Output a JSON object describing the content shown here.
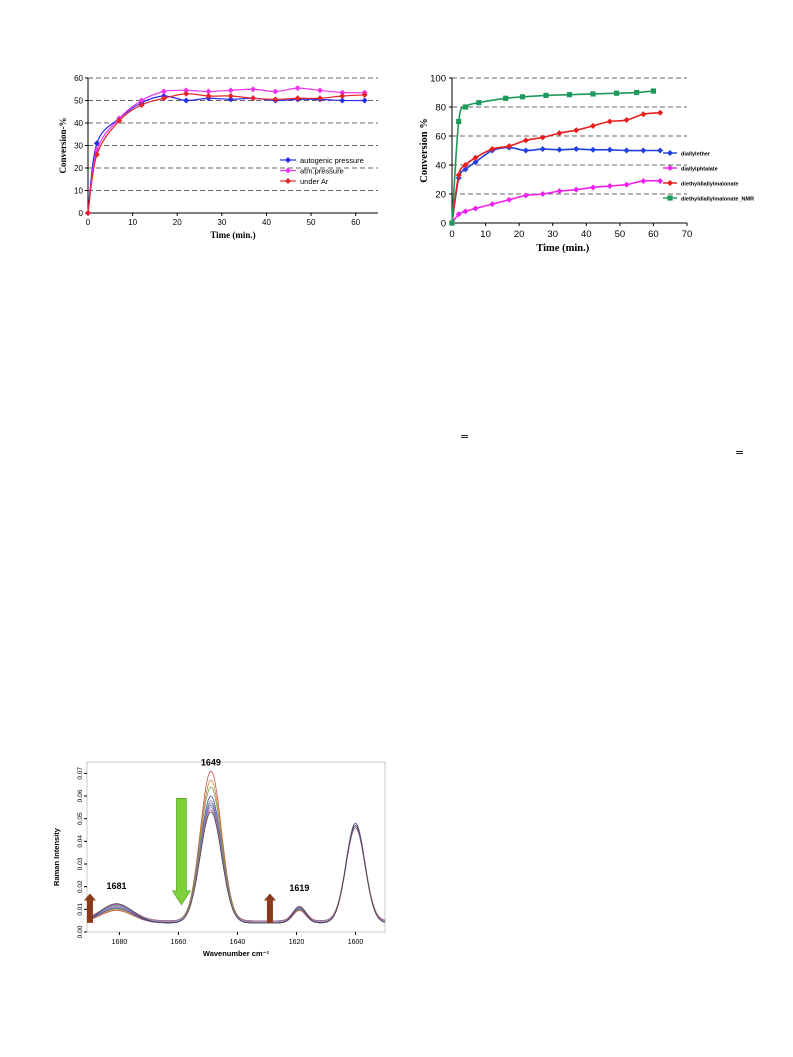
{
  "chart_data": [
    {
      "id": "conversion-a",
      "type": "line",
      "xlabel": "Time (min.)",
      "ylabel": "Conversion-%",
      "xlim": [
        0,
        65
      ],
      "ylim": [
        0,
        60
      ],
      "xticks": [
        0,
        10,
        20,
        30,
        40,
        50,
        60
      ],
      "yticks": [
        0,
        10,
        20,
        30,
        40,
        50,
        60
      ],
      "grid": "horizontal dashed",
      "legend_position": "center-right",
      "series": [
        {
          "name": "autogenic pressure",
          "color": "#2a2af0",
          "marker": "diamond",
          "x": [
            0,
            2,
            7,
            12,
            17,
            22,
            27,
            32,
            37,
            42,
            47,
            52,
            57,
            62
          ],
          "y": [
            0,
            31,
            42,
            49,
            52,
            50,
            51,
            50.5,
            51,
            50,
            50.5,
            50.5,
            50,
            50
          ]
        },
        {
          "name": "atm.pressure",
          "color": "#ee33ee",
          "marker": "diamond",
          "x": [
            0,
            2,
            7,
            12,
            17,
            22,
            27,
            32,
            37,
            42,
            47,
            52,
            57,
            62
          ],
          "y": [
            0,
            28,
            42,
            50,
            54,
            54.5,
            54,
            54.5,
            55,
            54,
            55.5,
            54.5,
            53.5,
            53.5
          ]
        },
        {
          "name": "under Ar",
          "color": "#e8232a",
          "marker": "diamond",
          "x": [
            0,
            2,
            7,
            12,
            17,
            22,
            27,
            32,
            37,
            42,
            47,
            52,
            57,
            62
          ],
          "y": [
            0,
            26,
            41,
            48,
            51,
            53,
            52,
            52,
            51,
            50.5,
            51,
            51,
            52,
            52.5
          ]
        }
      ]
    },
    {
      "id": "conversion-b",
      "type": "line",
      "xlabel": "Time (min.)",
      "ylabel": "Conversion %",
      "xlim": [
        0,
        70
      ],
      "ylim": [
        0,
        100
      ],
      "xticks": [
        0,
        10,
        20,
        30,
        40,
        50,
        60,
        70
      ],
      "yticks": [
        0,
        20,
        40,
        60,
        80,
        100
      ],
      "grid": "horizontal dashed",
      "legend_position": "right",
      "series": [
        {
          "name": "diallylether",
          "color": "#1f3fe0",
          "marker": "diamond",
          "x": [
            0,
            2,
            4,
            7,
            12,
            17,
            22,
            27,
            32,
            37,
            42,
            47,
            52,
            57,
            62
          ],
          "y": [
            0,
            31,
            37,
            42,
            50,
            52,
            50,
            51,
            50.5,
            51,
            50.5,
            50.5,
            50,
            50,
            50
          ]
        },
        {
          "name": "diallylphtalate",
          "color": "#ee22ee",
          "marker": "diamond",
          "x": [
            0,
            2,
            4,
            7,
            12,
            17,
            22,
            27,
            32,
            37,
            42,
            47,
            52,
            57,
            62
          ],
          "y": [
            0,
            6,
            8,
            10,
            13,
            16,
            19,
            20,
            22,
            23,
            24.5,
            25.5,
            26.5,
            29,
            29
          ]
        },
        {
          "name": "diethyldiallylmalonate",
          "color": "#e81d1d",
          "marker": "diamond",
          "x": [
            0,
            2,
            4,
            7,
            12,
            17,
            22,
            27,
            32,
            37,
            42,
            47,
            52,
            57,
            62
          ],
          "y": [
            0,
            33,
            40,
            45,
            51,
            53,
            57,
            59,
            62,
            64,
            67,
            70,
            71,
            75,
            76
          ]
        },
        {
          "name": "diethyldiallylmalonate_NMR",
          "color": "#1d9a5b",
          "marker": "square",
          "x": [
            0,
            2,
            4,
            8,
            16,
            21,
            28,
            35,
            42,
            49,
            55,
            60
          ],
          "y": [
            0,
            70,
            80,
            83,
            86,
            87,
            88,
            88.5,
            89,
            89.5,
            90,
            91
          ]
        }
      ]
    },
    {
      "id": "raman-spectrum",
      "type": "line",
      "xlabel": "Wavenumber cm⁻¹",
      "ylabel": "Raman Intensity",
      "xlim": [
        1691,
        1590
      ],
      "ylim": [
        0,
        0.075
      ],
      "xticks": [
        1680,
        1660,
        1640,
        1620,
        1600
      ],
      "yticks": [
        0.0,
        0.01,
        0.02,
        0.03,
        0.04,
        0.05,
        0.06,
        0.07
      ],
      "annotations": [
        "1681",
        "1649",
        "1619"
      ],
      "spectra": {
        "count": 10,
        "colors": [
          "#c04040",
          "#d07a2a",
          "#6a9a3a",
          "#3a3aa0",
          "#7a7ad0",
          "#888888",
          "#555599",
          "#9999cc",
          "#b05a8a",
          "#404040"
        ],
        "peak1649": [
          0.071,
          0.067,
          0.064,
          0.06,
          0.058,
          0.057,
          0.056,
          0.055,
          0.054,
          0.053
        ],
        "peak1681": [
          0.0095,
          0.0098,
          0.0102,
          0.0106,
          0.011,
          0.0114,
          0.0118,
          0.012,
          0.0122,
          0.0125
        ],
        "peak1619": [
          0.0095,
          0.0098,
          0.01,
          0.0103,
          0.0105,
          0.0107,
          0.0109,
          0.011,
          0.0112,
          0.0113
        ],
        "peak1600": [
          0.046,
          0.047,
          0.047,
          0.048,
          0.046,
          0.047,
          0.048,
          0.047,
          0.046,
          0.047
        ]
      },
      "arrows": [
        {
          "at": 1690,
          "direction": "up",
          "color": "#8a3a1a"
        },
        {
          "at": 1659,
          "direction": "down",
          "color": "#7ed13a"
        },
        {
          "at": 1629,
          "direction": "up",
          "color": "#8a3a1a"
        }
      ]
    }
  ],
  "stray_marks": [
    "=",
    "="
  ]
}
